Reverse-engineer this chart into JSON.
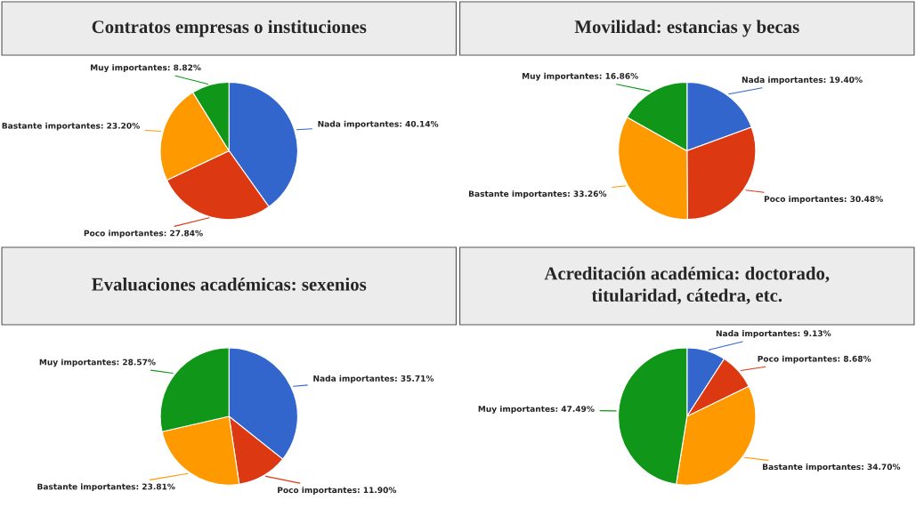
{
  "chart_data": [
    {
      "type": "pie",
      "title": "Contratos empresas o instituciones",
      "categories": [
        "Nada importantes",
        "Poco importantes",
        "Bastante importantes",
        "Muy importantes"
      ],
      "values": [
        40.14,
        27.84,
        23.2,
        8.82
      ],
      "value_labels": [
        "40.14%",
        "27.84%",
        "23.20%",
        "8.82%"
      ],
      "colors": [
        "#3366cc",
        "#dc3912",
        "#ff9900",
        "#109618"
      ]
    },
    {
      "type": "pie",
      "title": "Movilidad: estancias y becas",
      "categories": [
        "Nada importantes",
        "Poco importantes",
        "Bastante importantes",
        "Muy importantes"
      ],
      "values": [
        19.4,
        30.48,
        33.26,
        16.86
      ],
      "value_labels": [
        "19.40%",
        "30.48%",
        "33.26%",
        "16.86%"
      ],
      "colors": [
        "#3366cc",
        "#dc3912",
        "#ff9900",
        "#109618"
      ]
    },
    {
      "type": "pie",
      "title": "Evaluaciones académicas: sexenios",
      "categories": [
        "Nada importantes",
        "Poco importantes",
        "Bastante importantes",
        "Muy importantes"
      ],
      "values": [
        35.71,
        11.9,
        23.81,
        28.57
      ],
      "value_labels": [
        "35.71%",
        "11.90%",
        "23.81%",
        "28.57%"
      ],
      "colors": [
        "#3366cc",
        "#dc3912",
        "#ff9900",
        "#109618"
      ]
    },
    {
      "type": "pie",
      "title": "Acreditación académica: doctorado,\ntitularidad, cátedra, etc.",
      "categories": [
        "Nada importantes",
        "Poco importantes",
        "Bastante importantes",
        "Muy importantes"
      ],
      "values": [
        9.13,
        8.68,
        34.7,
        47.49
      ],
      "value_labels": [
        "9.13%",
        "8.68%",
        "34.70%",
        "47.49%"
      ],
      "colors": [
        "#3366cc",
        "#dc3912",
        "#ff9900",
        "#109618"
      ]
    }
  ]
}
